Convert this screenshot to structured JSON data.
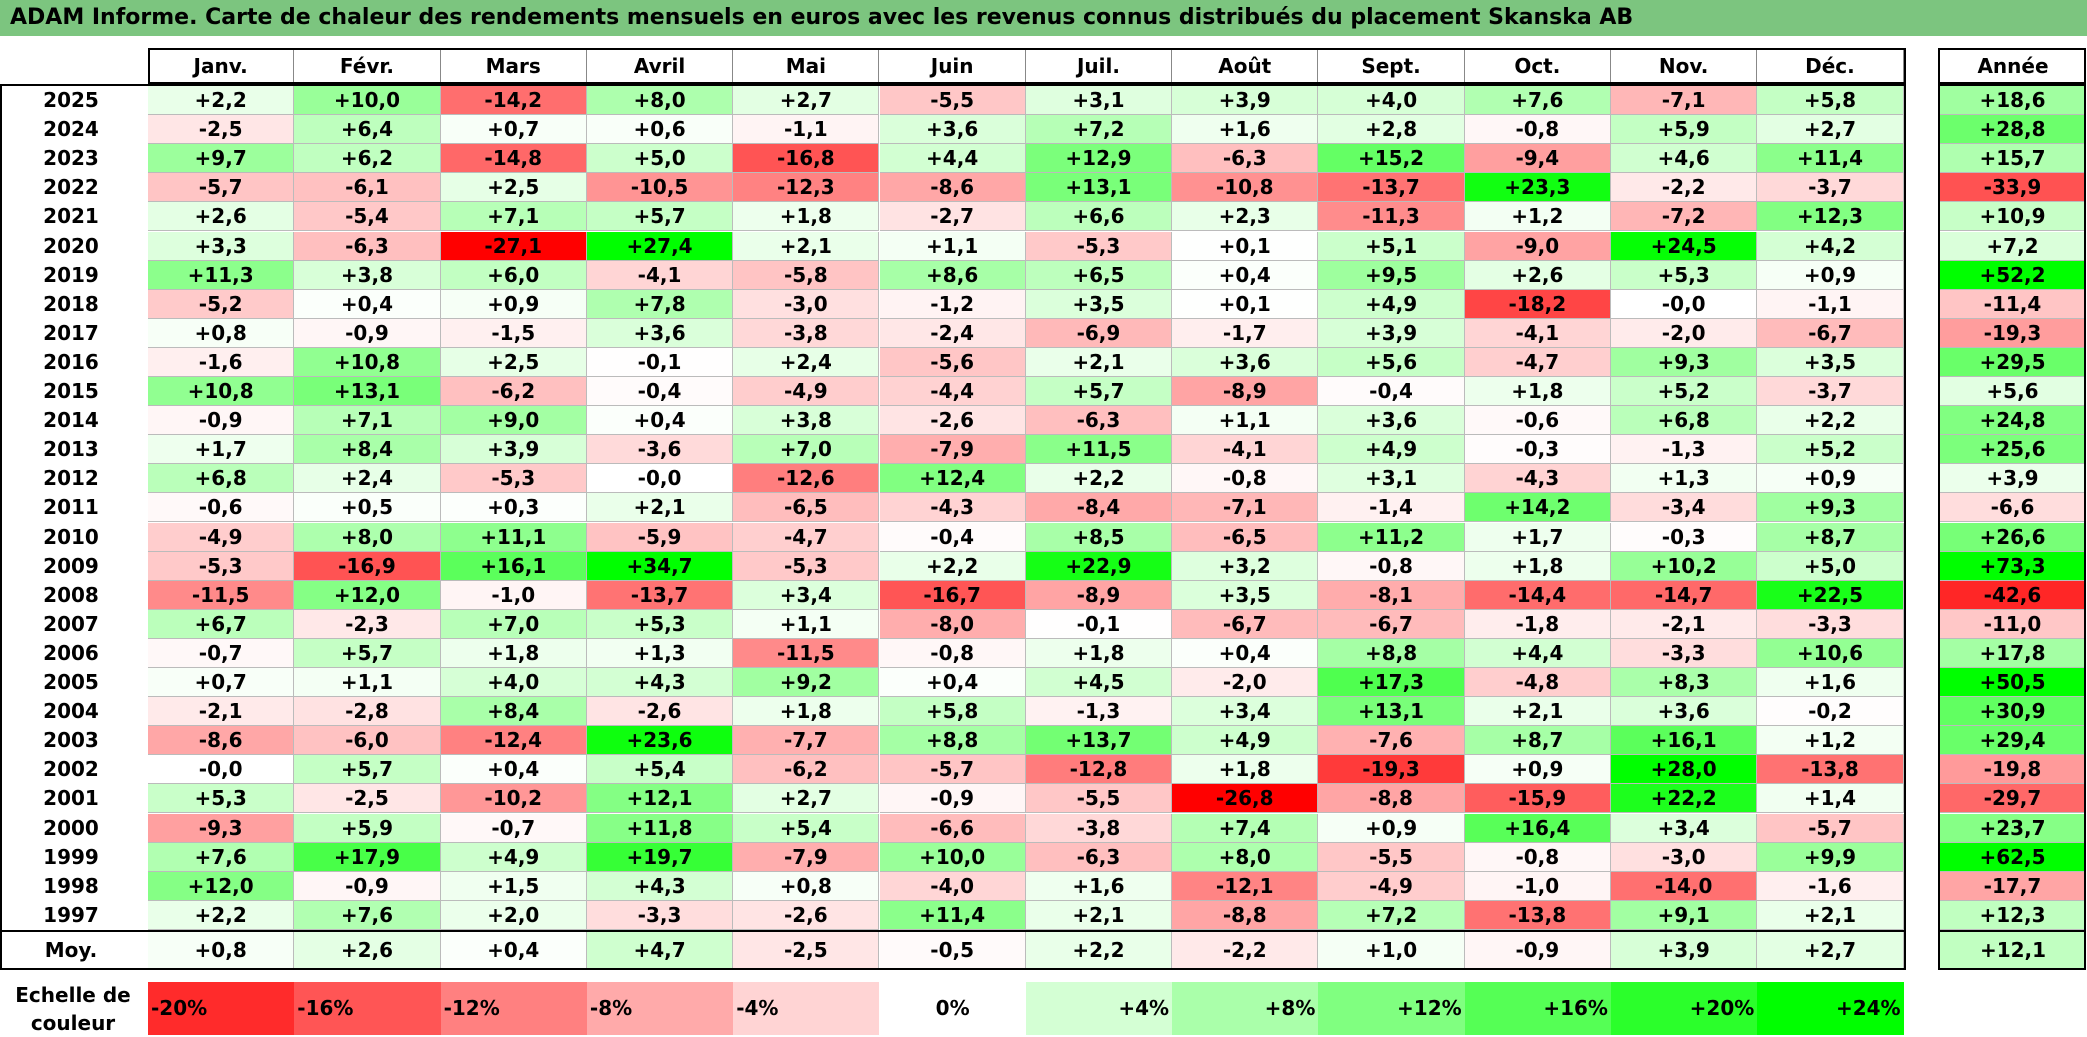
{
  "title": "ADAM Informe. Carte de chaleur des rendements mensuels en euros avec les revenus connus distribués du placement Skanska AB",
  "chart_data": {
    "type": "heatmap",
    "title": "ADAM Informe. Carte de chaleur des rendements mensuels en euros avec les revenus connus distribués du placement Skanska AB",
    "columns": [
      "Janv.",
      "Févr.",
      "Mars",
      "Avril",
      "Mai",
      "Juin",
      "Juil.",
      "Août",
      "Sept.",
      "Oct.",
      "Nov.",
      "Déc."
    ],
    "year_header": "Année",
    "rows": [
      {
        "year": "2025",
        "values": [
          "+2,2",
          "+10,0",
          "-14,2",
          "+8,0",
          "+2,7",
          "-5,5",
          "+3,1",
          "+3,9",
          "+4,0",
          "+7,6",
          "-7,1",
          "+5,8"
        ],
        "annual": "+18,6"
      },
      {
        "year": "2024",
        "values": [
          "-2,5",
          "+6,4",
          "+0,7",
          "+0,6",
          "-1,1",
          "+3,6",
          "+7,2",
          "+1,6",
          "+2,8",
          "-0,8",
          "+5,9",
          "+2,7"
        ],
        "annual": "+28,8"
      },
      {
        "year": "2023",
        "values": [
          "+9,7",
          "+6,2",
          "-14,8",
          "+5,0",
          "-16,8",
          "+4,4",
          "+12,9",
          "-6,3",
          "+15,2",
          "-9,4",
          "+4,6",
          "+11,4"
        ],
        "annual": "+15,7"
      },
      {
        "year": "2022",
        "values": [
          "-5,7",
          "-6,1",
          "+2,5",
          "-10,5",
          "-12,3",
          "-8,6",
          "+13,1",
          "-10,8",
          "-13,7",
          "+23,3",
          "-2,2",
          "-3,7"
        ],
        "annual": "-33,9"
      },
      {
        "year": "2021",
        "values": [
          "+2,6",
          "-5,4",
          "+7,1",
          "+5,7",
          "+1,8",
          "-2,7",
          "+6,6",
          "+2,3",
          "-11,3",
          "+1,2",
          "-7,2",
          "+12,3"
        ],
        "annual": "+10,9"
      },
      {
        "year": "2020",
        "values": [
          "+3,3",
          "-6,3",
          "-27,1",
          "+27,4",
          "+2,1",
          "+1,1",
          "-5,3",
          "+0,1",
          "+5,1",
          "-9,0",
          "+24,5",
          "+4,2"
        ],
        "annual": "+7,2"
      },
      {
        "year": "2019",
        "values": [
          "+11,3",
          "+3,8",
          "+6,0",
          "-4,1",
          "-5,8",
          "+8,6",
          "+6,5",
          "+0,4",
          "+9,5",
          "+2,6",
          "+5,3",
          "+0,9"
        ],
        "annual": "+52,2"
      },
      {
        "year": "2018",
        "values": [
          "-5,2",
          "+0,4",
          "+0,9",
          "+7,8",
          "-3,0",
          "-1,2",
          "+3,5",
          "+0,1",
          "+4,9",
          "-18,2",
          "-0,0",
          "-1,1"
        ],
        "annual": "-11,4"
      },
      {
        "year": "2017",
        "values": [
          "+0,8",
          "-0,9",
          "-1,5",
          "+3,6",
          "-3,8",
          "-2,4",
          "-6,9",
          "-1,7",
          "+3,9",
          "-4,1",
          "-2,0",
          "-6,7"
        ],
        "annual": "-19,3"
      },
      {
        "year": "2016",
        "values": [
          "-1,6",
          "+10,8",
          "+2,5",
          "-0,1",
          "+2,4",
          "-5,6",
          "+2,1",
          "+3,6",
          "+5,6",
          "-4,7",
          "+9,3",
          "+3,5"
        ],
        "annual": "+29,5"
      },
      {
        "year": "2015",
        "values": [
          "+10,8",
          "+13,1",
          "-6,2",
          "-0,4",
          "-4,9",
          "-4,4",
          "+5,7",
          "-8,9",
          "-0,4",
          "+1,8",
          "+5,2",
          "-3,7"
        ],
        "annual": "+5,6"
      },
      {
        "year": "2014",
        "values": [
          "-0,9",
          "+7,1",
          "+9,0",
          "+0,4",
          "+3,8",
          "-2,6",
          "-6,3",
          "+1,1",
          "+3,6",
          "-0,6",
          "+6,8",
          "+2,2"
        ],
        "annual": "+24,8"
      },
      {
        "year": "2013",
        "values": [
          "+1,7",
          "+8,4",
          "+3,9",
          "-3,6",
          "+7,0",
          "-7,9",
          "+11,5",
          "-4,1",
          "+4,9",
          "-0,3",
          "-1,3",
          "+5,2"
        ],
        "annual": "+25,6"
      },
      {
        "year": "2012",
        "values": [
          "+6,8",
          "+2,4",
          "-5,3",
          "-0,0",
          "-12,6",
          "+12,4",
          "+2,2",
          "-0,8",
          "+3,1",
          "-4,3",
          "+1,3",
          "+0,9"
        ],
        "annual": "+3,9"
      },
      {
        "year": "2011",
        "values": [
          "-0,6",
          "+0,5",
          "+0,3",
          "+2,1",
          "-6,5",
          "-4,3",
          "-8,4",
          "-7,1",
          "-1,4",
          "+14,2",
          "-3,4",
          "+9,3"
        ],
        "annual": "-6,6"
      },
      {
        "year": "2010",
        "values": [
          "-4,9",
          "+8,0",
          "+11,1",
          "-5,9",
          "-4,7",
          "-0,4",
          "+8,5",
          "-6,5",
          "+11,2",
          "+1,7",
          "-0,3",
          "+8,7"
        ],
        "annual": "+26,6"
      },
      {
        "year": "2009",
        "values": [
          "-5,3",
          "-16,9",
          "+16,1",
          "+34,7",
          "-5,3",
          "+2,2",
          "+22,9",
          "+3,2",
          "-0,8",
          "+1,8",
          "+10,2",
          "+5,0"
        ],
        "annual": "+73,3"
      },
      {
        "year": "2008",
        "values": [
          "-11,5",
          "+12,0",
          "-1,0",
          "-13,7",
          "+3,4",
          "-16,7",
          "-8,9",
          "+3,5",
          "-8,1",
          "-14,4",
          "-14,7",
          "+22,5"
        ],
        "annual": "-42,6"
      },
      {
        "year": "2007",
        "values": [
          "+6,7",
          "-2,3",
          "+7,0",
          "+5,3",
          "+1,1",
          "-8,0",
          "-0,1",
          "-6,7",
          "-6,7",
          "-1,8",
          "-2,1",
          "-3,3"
        ],
        "annual": "-11,0"
      },
      {
        "year": "2006",
        "values": [
          "-0,7",
          "+5,7",
          "+1,8",
          "+1,3",
          "-11,5",
          "-0,8",
          "+1,8",
          "+0,4",
          "+8,8",
          "+4,4",
          "-3,3",
          "+10,6"
        ],
        "annual": "+17,8"
      },
      {
        "year": "2005",
        "values": [
          "+0,7",
          "+1,1",
          "+4,0",
          "+4,3",
          "+9,2",
          "+0,4",
          "+4,5",
          "-2,0",
          "+17,3",
          "-4,8",
          "+8,3",
          "+1,6"
        ],
        "annual": "+50,5"
      },
      {
        "year": "2004",
        "values": [
          "-2,1",
          "-2,8",
          "+8,4",
          "-2,6",
          "+1,8",
          "+5,8",
          "-1,3",
          "+3,4",
          "+13,1",
          "+2,1",
          "+3,6",
          "-0,2"
        ],
        "annual": "+30,9"
      },
      {
        "year": "2003",
        "values": [
          "-8,6",
          "-6,0",
          "-12,4",
          "+23,6",
          "-7,7",
          "+8,8",
          "+13,7",
          "+4,9",
          "-7,6",
          "+8,7",
          "+16,1",
          "+1,2"
        ],
        "annual": "+29,4"
      },
      {
        "year": "2002",
        "values": [
          "-0,0",
          "+5,7",
          "+0,4",
          "+5,4",
          "-6,2",
          "-5,7",
          "-12,8",
          "+1,8",
          "-19,3",
          "+0,9",
          "+28,0",
          "-13,8"
        ],
        "annual": "-19,8"
      },
      {
        "year": "2001",
        "values": [
          "+5,3",
          "-2,5",
          "-10,2",
          "+12,1",
          "+2,7",
          "-0,9",
          "-5,5",
          "-26,8",
          "-8,8",
          "-15,9",
          "+22,2",
          "+1,4"
        ],
        "annual": "-29,7"
      },
      {
        "year": "2000",
        "values": [
          "-9,3",
          "+5,9",
          "-0,7",
          "+11,8",
          "+5,4",
          "-6,6",
          "-3,8",
          "+7,4",
          "+0,9",
          "+16,4",
          "+3,4",
          "-5,7"
        ],
        "annual": "+23,7"
      },
      {
        "year": "1999",
        "values": [
          "+7,6",
          "+17,9",
          "+4,9",
          "+19,7",
          "-7,9",
          "+10,0",
          "-6,3",
          "+8,0",
          "-5,5",
          "-0,8",
          "-3,0",
          "+9,9"
        ],
        "annual": "+62,5"
      },
      {
        "year": "1998",
        "values": [
          "+12,0",
          "-0,9",
          "+1,5",
          "+4,3",
          "+0,8",
          "-4,0",
          "+1,6",
          "-12,1",
          "-4,9",
          "-1,0",
          "-14,0",
          "-1,6"
        ],
        "annual": "-17,7"
      },
      {
        "year": "1997",
        "values": [
          "+2,2",
          "+7,6",
          "+2,0",
          "-3,3",
          "-2,6",
          "+11,4",
          "+2,1",
          "-8,8",
          "+7,2",
          "-13,8",
          "+9,1",
          "+2,1"
        ],
        "annual": "+12,3"
      }
    ],
    "average": {
      "label": "Moy.",
      "values": [
        "+0,8",
        "+2,6",
        "+0,4",
        "+4,7",
        "-2,5",
        "-0,5",
        "+2,2",
        "-2,2",
        "+1,0",
        "-0,9",
        "+3,9",
        "+2,7"
      ],
      "annual": "+12,1"
    },
    "scale_label": "Echelle de couleur",
    "scale": [
      "-20%",
      "-16%",
      "-12%",
      "-8%",
      "-4%",
      "0%",
      "+4%",
      "+8%",
      "+12%",
      "+16%",
      "+20%",
      "+24%"
    ],
    "colors": {
      "title_bar": "#7CC57F",
      "negative": "#FF0000",
      "positive": "#00FF00",
      "neutral": "#FFFFFF"
    }
  }
}
